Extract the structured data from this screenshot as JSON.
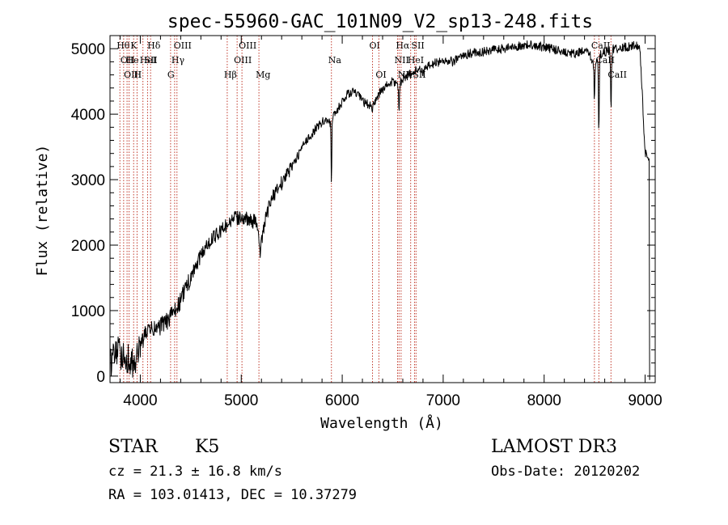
{
  "chart_data": {
    "type": "line",
    "title": "spec-55960-GAC_101N09_V2_sp13-248.fits",
    "xlabel": "Wavelength (Å)",
    "ylabel": "Flux (relative)",
    "xlim": [
      3700,
      9100
    ],
    "ylim": [
      -100,
      5200
    ],
    "xticks": [
      4000,
      5000,
      6000,
      7000,
      8000,
      9000
    ],
    "yticks": [
      0,
      1000,
      2000,
      3000,
      4000,
      5000
    ],
    "grid": false,
    "series": [
      {
        "name": "spectrum",
        "anchors": [
          [
            3700,
            200
          ],
          [
            3760,
            380
          ],
          [
            3820,
            320
          ],
          [
            3880,
            260
          ],
          [
            3920,
            180
          ],
          [
            3960,
            260
          ],
          [
            4000,
            430
          ],
          [
            4060,
            680
          ],
          [
            4100,
            700
          ],
          [
            4150,
            720
          ],
          [
            4200,
            760
          ],
          [
            4250,
            820
          ],
          [
            4300,
            900
          ],
          [
            4340,
            980
          ],
          [
            4400,
            1150
          ],
          [
            4450,
            1350
          ],
          [
            4500,
            1500
          ],
          [
            4560,
            1700
          ],
          [
            4620,
            1900
          ],
          [
            4680,
            2050
          ],
          [
            4750,
            2150
          ],
          [
            4820,
            2250
          ],
          [
            4860,
            2320
          ],
          [
            4920,
            2400
          ],
          [
            5000,
            2430
          ],
          [
            5080,
            2380
          ],
          [
            5150,
            2350
          ],
          [
            5200,
            2050
          ],
          [
            5230,
            2300
          ],
          [
            5260,
            2520
          ],
          [
            5300,
            2700
          ],
          [
            5350,
            2850
          ],
          [
            5400,
            2950
          ],
          [
            5450,
            3080
          ],
          [
            5500,
            3200
          ],
          [
            5550,
            3330
          ],
          [
            5600,
            3480
          ],
          [
            5650,
            3600
          ],
          [
            5700,
            3700
          ],
          [
            5750,
            3800
          ],
          [
            5800,
            3880
          ],
          [
            5850,
            3920
          ],
          [
            5880,
            3870
          ],
          [
            5950,
            4060
          ],
          [
            6000,
            4180
          ],
          [
            6050,
            4300
          ],
          [
            6100,
            4350
          ],
          [
            6150,
            4300
          ],
          [
            6200,
            4200
          ],
          [
            6250,
            4150
          ],
          [
            6300,
            4100
          ],
          [
            6350,
            4280
          ],
          [
            6400,
            4380
          ],
          [
            6450,
            4450
          ],
          [
            6500,
            4500
          ],
          [
            6560,
            4440
          ],
          [
            6600,
            4550
          ],
          [
            6650,
            4600
          ],
          [
            6700,
            4620
          ],
          [
            6750,
            4700
          ],
          [
            6800,
            4650
          ],
          [
            6850,
            4720
          ],
          [
            6900,
            4770
          ],
          [
            7000,
            4820
          ],
          [
            7100,
            4800
          ],
          [
            7200,
            4900
          ],
          [
            7300,
            4940
          ],
          [
            7400,
            4950
          ],
          [
            7500,
            4980
          ],
          [
            7600,
            5000
          ],
          [
            7700,
            5030
          ],
          [
            7800,
            5050
          ],
          [
            7900,
            5060
          ],
          [
            8000,
            5020
          ],
          [
            8100,
            4990
          ],
          [
            8200,
            4950
          ],
          [
            8300,
            4920
          ],
          [
            8400,
            4960
          ],
          [
            8450,
            4920
          ],
          [
            8500,
            4700
          ],
          [
            8540,
            4920
          ],
          [
            8600,
            4950
          ],
          [
            8700,
            5000
          ],
          [
            8800,
            5020
          ],
          [
            8900,
            5050
          ],
          [
            8950,
            5000
          ],
          [
            9000,
            3400
          ],
          [
            9050,
            3300
          ]
        ],
        "absorption_lines": [
          {
            "center": 5893,
            "depth": 950,
            "width": 5
          },
          {
            "center": 6563,
            "depth": 450,
            "width": 5
          },
          {
            "center": 8498,
            "depth": 500,
            "width": 5
          },
          {
            "center": 8542,
            "depth": 1200,
            "width": 6
          },
          {
            "center": 8662,
            "depth": 900,
            "width": 6
          },
          {
            "center": 5183,
            "depth": 300,
            "width": 8
          }
        ],
        "noise": [
          {
            "range": [
              3700,
              4000
            ],
            "amplitude": 240
          },
          {
            "range": [
              4000,
              4500
            ],
            "amplitude": 140
          },
          {
            "range": [
              4500,
              5500
            ],
            "amplitude": 110
          },
          {
            "range": [
              5500,
              9100
            ],
            "amplitude": 70
          }
        ]
      }
    ],
    "line_markers": [
      {
        "wavelength": 3798,
        "label": "Hθ",
        "row": 0
      },
      {
        "wavelength": 3835,
        "label": "OII",
        "row": 1
      },
      {
        "wavelength": 3869,
        "label": "OIII",
        "row": 2
      },
      {
        "wavelength": 3889,
        "label": "He",
        "row": 1
      },
      {
        "wavelength": 3934,
        "label": "K",
        "row": 0
      },
      {
        "wavelength": 3968,
        "label": "H",
        "row": 2
      },
      {
        "wavelength": 4026,
        "label": "HeI",
        "row": 1
      },
      {
        "wavelength": 4072,
        "label": "SII",
        "row": 1
      },
      {
        "wavelength": 4102,
        "label": "Hδ",
        "row": 0
      },
      {
        "wavelength": 4300,
        "label": "G",
        "row": 2
      },
      {
        "wavelength": 4340,
        "label": "Hγ",
        "row": 1
      },
      {
        "wavelength": 4363,
        "label": "OIII",
        "row": 0
      },
      {
        "wavelength": 4861,
        "label": "Hβ",
        "row": 2
      },
      {
        "wavelength": 4959,
        "label": "OIII",
        "row": 1
      },
      {
        "wavelength": 5007,
        "label": "OIII",
        "row": 0
      },
      {
        "wavelength": 5175,
        "label": "Mg",
        "row": 2
      },
      {
        "wavelength": 5893,
        "label": "Na",
        "row": 1
      },
      {
        "wavelength": 6300,
        "label": "OI",
        "row": 0
      },
      {
        "wavelength": 6363,
        "label": "OI",
        "row": 2
      },
      {
        "wavelength": 6548,
        "label": "NII",
        "row": 1
      },
      {
        "wavelength": 6563,
        "label": "Hα",
        "row": 0
      },
      {
        "wavelength": 6583,
        "label": "NII",
        "row": 2
      },
      {
        "wavelength": 6678,
        "label": "HeI",
        "row": 1
      },
      {
        "wavelength": 6716,
        "label": "SII",
        "row": 0
      },
      {
        "wavelength": 6731,
        "label": "SII",
        "row": 2
      },
      {
        "wavelength": 8498,
        "label": "CaII",
        "row": 0
      },
      {
        "wavelength": 8542,
        "label": "CaII",
        "row": 1
      },
      {
        "wavelength": 8662,
        "label": "CaII",
        "row": 2
      }
    ]
  },
  "info": {
    "object_class": "STAR",
    "subclass": "K5",
    "survey": "LAMOST DR3",
    "cz": "cz = 21.3 ± 16.8 km/s",
    "obs_date": "Obs-Date: 20120202",
    "radec": "RA = 103.01413, DEC =  10.37279"
  },
  "colors": {
    "marker_line": "#c0392b",
    "spectrum": "#000000",
    "axes": "#000000"
  }
}
